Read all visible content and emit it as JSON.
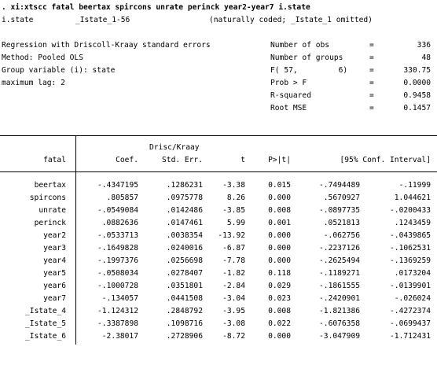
{
  "command": ". xi:xtscc fatal beertax spircons unrate perinck year2-year7 i.state",
  "xi_line": {
    "var": "i.state",
    "range": "_Istate_1-56",
    "note": "(naturally coded; _Istate_1 omitted)"
  },
  "info_lines": [
    "Regression with Driscoll-Kraay standard errors",
    "Method: Pooled OLS",
    "Group variable (i): state",
    "maximum lag: 2"
  ],
  "stats": [
    {
      "label": "Number of obs",
      "eq": "=",
      "value": "336"
    },
    {
      "label": "Number of groups",
      "eq": "=",
      "value": "48"
    },
    {
      "label": "F( 57,         6)",
      "eq": "=",
      "value": "330.75"
    },
    {
      "label": "Prob > F",
      "eq": "=",
      "value": "0.0000"
    },
    {
      "label": "R-squared",
      "eq": "=",
      "value": "0.9458"
    },
    {
      "label": "Root MSE",
      "eq": "=",
      "value": "0.1457"
    }
  ],
  "table": {
    "header_top": "Drisc/Kraay",
    "columns": [
      "fatal",
      "Coef.",
      "Std. Err.",
      "t",
      "P>|t|",
      "[95% Conf. Interval]"
    ],
    "rows": [
      {
        "var": "beertax",
        "coef": "-.4347195",
        "se": ".1286231",
        "t": "-3.38",
        "p": "0.015",
        "lo": "-.7494489",
        "hi": "-.11999"
      },
      {
        "var": "spircons",
        "coef": ".805857",
        "se": ".0975778",
        "t": "8.26",
        "p": "0.000",
        "lo": ".5670927",
        "hi": "1.044621"
      },
      {
        "var": "unrate",
        "coef": "-.0549084",
        "se": ".0142486",
        "t": "-3.85",
        "p": "0.008",
        "lo": "-.0897735",
        "hi": "-.0200433"
      },
      {
        "var": "perinck",
        "coef": ".0882636",
        "se": ".0147461",
        "t": "5.99",
        "p": "0.001",
        "lo": ".0521813",
        "hi": ".1243459"
      },
      {
        "var": "year2",
        "coef": "-.0533713",
        "se": ".0038354",
        "t": "-13.92",
        "p": "0.000",
        "lo": "-.062756",
        "hi": "-.0439865"
      },
      {
        "var": "year3",
        "coef": "-.1649828",
        "se": ".0240016",
        "t": "-6.87",
        "p": "0.000",
        "lo": "-.2237126",
        "hi": "-.1062531"
      },
      {
        "var": "year4",
        "coef": "-.1997376",
        "se": ".0256698",
        "t": "-7.78",
        "p": "0.000",
        "lo": "-.2625494",
        "hi": "-.1369259"
      },
      {
        "var": "year5",
        "coef": "-.0508034",
        "se": ".0278407",
        "t": "-1.82",
        "p": "0.118",
        "lo": "-.1189271",
        "hi": ".0173204"
      },
      {
        "var": "year6",
        "coef": "-.1000728",
        "se": ".0351801",
        "t": "-2.84",
        "p": "0.029",
        "lo": "-.1861555",
        "hi": "-.0139901"
      },
      {
        "var": "year7",
        "coef": "-.134057",
        "se": ".0441508",
        "t": "-3.04",
        "p": "0.023",
        "lo": "-.2420901",
        "hi": "-.026024"
      },
      {
        "var": "_Istate_4",
        "coef": "-1.124312",
        "se": ".2848792",
        "t": "-3.95",
        "p": "0.008",
        "lo": "-1.821386",
        "hi": "-.4272374"
      },
      {
        "var": "_Istate_5",
        "coef": "-.3387898",
        "se": ".1098716",
        "t": "-3.08",
        "p": "0.022",
        "lo": "-.6076358",
        "hi": "-.0699437"
      },
      {
        "var": "_Istate_6",
        "coef": "-2.38017",
        "se": ".2728906",
        "t": "-8.72",
        "p": "0.000",
        "lo": "-3.047909",
        "hi": "-1.712431"
      }
    ]
  }
}
